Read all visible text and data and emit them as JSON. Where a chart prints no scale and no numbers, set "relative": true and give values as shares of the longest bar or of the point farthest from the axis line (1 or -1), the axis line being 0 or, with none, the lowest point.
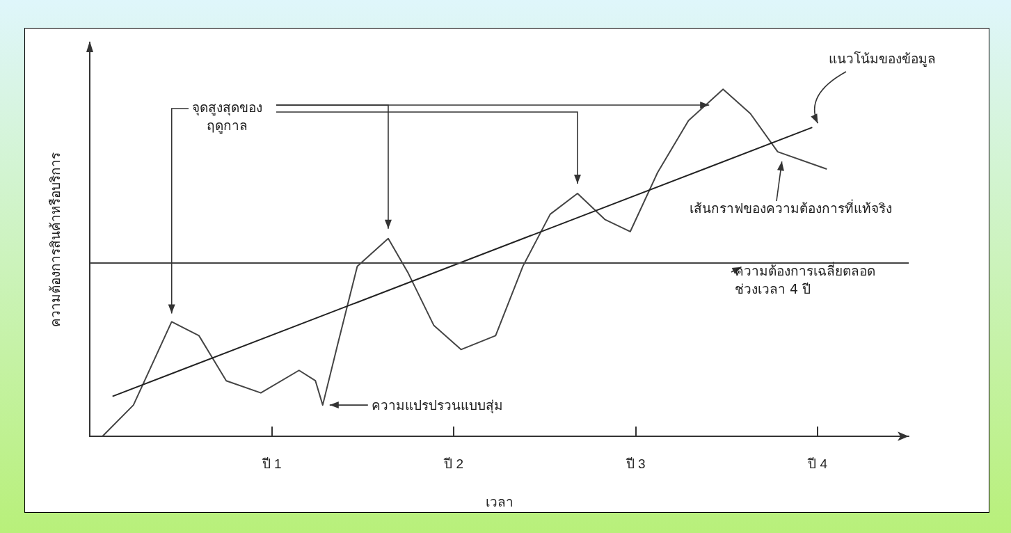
{
  "chart_data": {
    "type": "line",
    "relative": true,
    "xlabel": "เวลา",
    "ylabel": "ความต้องการสินค้าหรือบริการ",
    "xlim": [
      0,
      4.5
    ],
    "xticks": [
      {
        "value": 1,
        "label": "ปี 1"
      },
      {
        "value": 2,
        "label": "ปี 2"
      },
      {
        "value": 3,
        "label": "ปี 3"
      },
      {
        "value": 4,
        "label": "ปี 4"
      }
    ],
    "series": [
      {
        "color": "#444444",
        "x": [
          0.07,
          0.24,
          0.45,
          0.6,
          0.75,
          0.94,
          1.15,
          1.24,
          1.28,
          1.36,
          1.47,
          1.64,
          1.75,
          1.89,
          2.04,
          2.23,
          2.38,
          2.53,
          2.68,
          2.83,
          2.97,
          3.12,
          3.29,
          3.48,
          3.63,
          3.78,
          4.05
        ],
        "values": [
          0,
          0.09,
          0.33,
          0.29,
          0.16,
          0.125,
          0.19,
          0.16,
          0.09,
          0.26,
          0.49,
          0.57,
          0.47,
          0.32,
          0.25,
          0.29,
          0.49,
          0.64,
          0.7,
          0.625,
          0.59,
          0.76,
          0.91,
          1,
          0.93,
          0.82,
          0.77
        ]
      },
      {
        "color": "#222222",
        "x": [
          0.125,
          3.97
        ],
        "values": [
          0.115,
          0.89
        ]
      }
    ],
    "ref_lines": [
      {
        "axis": "y",
        "value": 0.5,
        "label": "ความต้องการเฉลี่ยตลอด\nช่วงเวลา 4 ปี",
        "color": "#444444"
      }
    ],
    "annotations": [
      "จุดสูงสุดของ\nฤดูกาล",
      "แนวโน้มของข้อมูล",
      "เส้นกราฟของความต้องการที่แท้จริง",
      "ความแปรปรวนแบบสุ่ม"
    ],
    "grid": false,
    "marker": "none",
    "line_style": "solid"
  }
}
